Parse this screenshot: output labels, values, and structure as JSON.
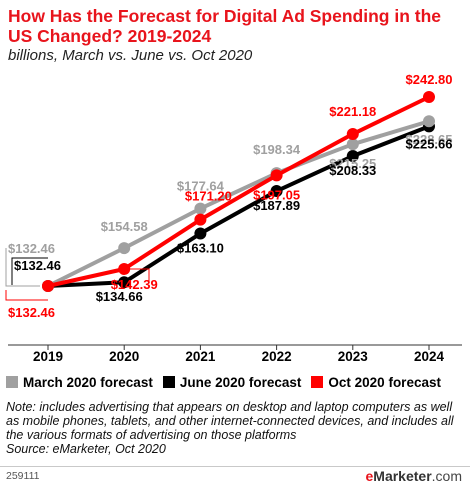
{
  "title": "How Has the Forecast for Digital Ad Spending in the US Changed? 2019-2024",
  "subtitle": "billions, March vs. June vs. Oct 2020",
  "colors": {
    "march": "#a0a0a0",
    "june": "#000000",
    "oct": "#ff0000",
    "title": "#e8141c"
  },
  "legend": [
    "March 2020 forecast",
    "June 2020 forecast",
    "Oct 2020 forecast"
  ],
  "note": "Note: includes advertising that appears on desktop and laptop computers as well as mobile phones, tablets, and other internet-connected devices, and includes all the various formats of advertising on those platforms",
  "source": "Source: eMarketer, Oct 2020",
  "chart_id": "259111",
  "brand": {
    "e": "e",
    "rest": "Marketer",
    "suffix": ".com"
  },
  "chart_data": {
    "type": "line",
    "title": "How Has the Forecast for Digital Ad Spending in the US Changed? 2019-2024",
    "subtitle": "billions, March vs. June vs. Oct 2020",
    "categories": [
      "2019",
      "2020",
      "2021",
      "2022",
      "2023",
      "2024"
    ],
    "series": [
      {
        "name": "March 2020 forecast",
        "color": "#a0a0a0",
        "values": [
          132.46,
          154.58,
          177.64,
          198.34,
          215.25,
          228.65
        ],
        "labels": [
          "$132.46",
          "$154.58",
          "$177.64",
          "$198.34",
          "$215.25",
          "$228.65"
        ]
      },
      {
        "name": "June 2020 forecast",
        "color": "#000000",
        "values": [
          132.46,
          134.66,
          163.1,
          187.89,
          208.33,
          225.66
        ],
        "labels": [
          "$132.46",
          "$134.66",
          "$163.10",
          "$187.89",
          "$208.33",
          "$225.66"
        ]
      },
      {
        "name": "Oct 2020 forecast",
        "color": "#ff0000",
        "values": [
          132.46,
          142.39,
          171.2,
          197.05,
          221.18,
          242.8
        ],
        "labels": [
          "$132.46",
          "$142.39",
          "$171.20",
          "$197.05",
          "$221.18",
          "$242.80"
        ]
      }
    ],
    "grid": false,
    "legend_position": "bottom"
  }
}
